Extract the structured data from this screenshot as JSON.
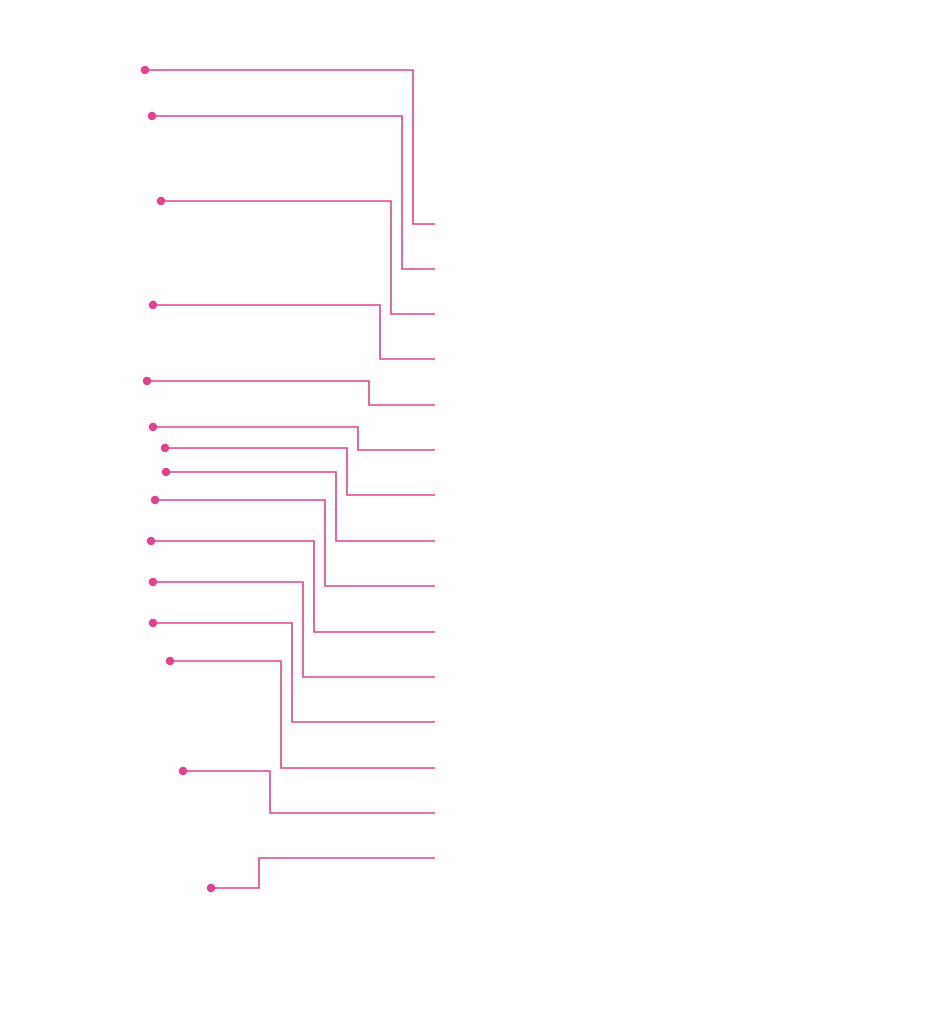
{
  "diagram": {
    "type": "leader-line-callouts",
    "line_color": "#e0428f",
    "dot_color": "#e0428f",
    "labels_visible": false,
    "callout_count": 15,
    "callouts": [
      {
        "index": 1,
        "label": ""
      },
      {
        "index": 2,
        "label": ""
      },
      {
        "index": 3,
        "label": ""
      },
      {
        "index": 4,
        "label": ""
      },
      {
        "index": 5,
        "label": ""
      },
      {
        "index": 6,
        "label": ""
      },
      {
        "index": 7,
        "label": ""
      },
      {
        "index": 8,
        "label": ""
      },
      {
        "index": 9,
        "label": ""
      },
      {
        "index": 10,
        "label": ""
      },
      {
        "index": 11,
        "label": ""
      },
      {
        "index": 12,
        "label": ""
      },
      {
        "index": 13,
        "label": ""
      },
      {
        "index": 14,
        "label": ""
      },
      {
        "index": 15,
        "label": ""
      }
    ]
  }
}
